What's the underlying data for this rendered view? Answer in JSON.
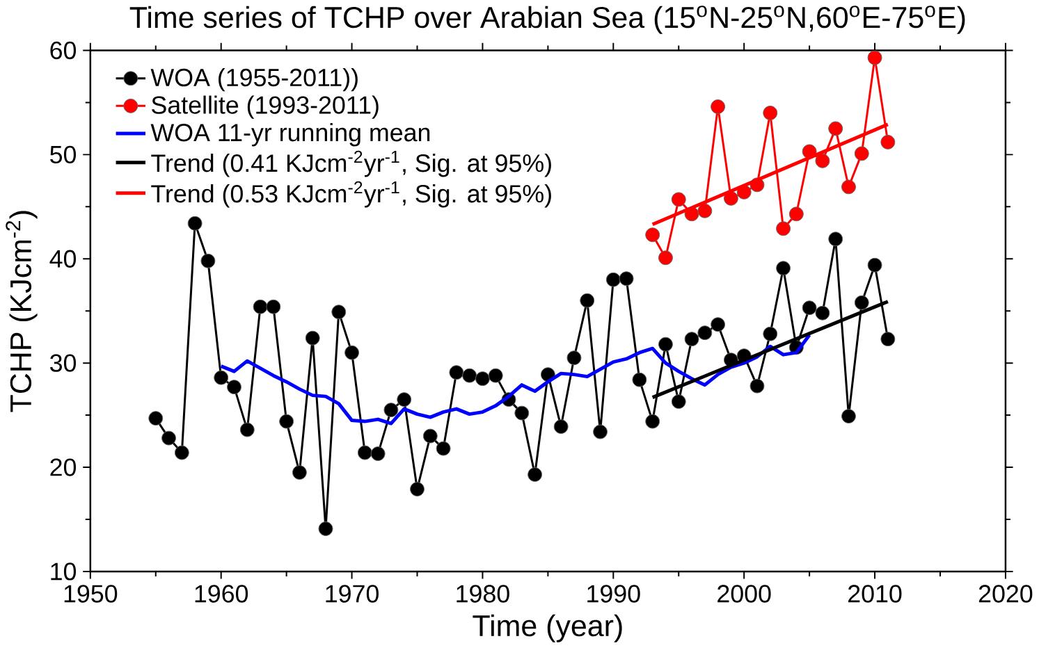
{
  "chart_data": {
    "type": "line",
    "title": "Time series of TCHP over Arabian Sea (15$^{o}$N-25$^{o}$N,60$^{o}$E-75$^{o}$E)",
    "xlabel": "Time (year)",
    "ylabel": "TCHP (KJcm$^{-2}$)",
    "xlim": [
      1950,
      2020
    ],
    "ylim": [
      10,
      60
    ],
    "xticks": [
      1950,
      1960,
      1970,
      1980,
      1990,
      2000,
      2010,
      2020
    ],
    "yticks": [
      10,
      20,
      30,
      40,
      50,
      60
    ],
    "legend": "top left",
    "line_style": "solid",
    "series": [
      {
        "name": "WOA (1955-2011))",
        "color": "#000000",
        "marker": "circle",
        "x": [
          1955,
          1956,
          1957,
          1958,
          1959,
          1960,
          1961,
          1962,
          1963,
          1964,
          1965,
          1966,
          1967,
          1968,
          1969,
          1970,
          1971,
          1972,
          1973,
          1974,
          1975,
          1976,
          1977,
          1978,
          1979,
          1980,
          1981,
          1982,
          1983,
          1984,
          1985,
          1986,
          1987,
          1988,
          1989,
          1990,
          1991,
          1992,
          1993,
          1994,
          1995,
          1996,
          1997,
          1998,
          1999,
          2000,
          2001,
          2002,
          2003,
          2004,
          2005,
          2006,
          2007,
          2008,
          2009,
          2010,
          2011
        ],
        "values": [
          24.7,
          22.8,
          21.4,
          43.4,
          39.8,
          28.6,
          27.7,
          23.6,
          35.4,
          35.4,
          24.4,
          19.5,
          32.4,
          14.1,
          34.9,
          31.0,
          21.4,
          21.3,
          25.5,
          26.5,
          17.9,
          23.0,
          21.8,
          29.1,
          28.8,
          28.5,
          28.8,
          26.5,
          25.2,
          19.3,
          28.9,
          23.9,
          30.5,
          36.0,
          23.4,
          38.0,
          38.1,
          28.4,
          24.4,
          31.8,
          26.3,
          32.3,
          32.9,
          33.7,
          30.3,
          30.7,
          27.8,
          32.8,
          39.1,
          31.5,
          35.3,
          34.8,
          41.9,
          24.9,
          35.8,
          39.4,
          32.3
        ]
      },
      {
        "name": "Satellite (1993-2011)",
        "color": "#ff0000",
        "marker": "circle",
        "x": [
          1993,
          1994,
          1995,
          1996,
          1997,
          1998,
          1999,
          2000,
          2001,
          2002,
          2003,
          2004,
          2005,
          2006,
          2007,
          2008,
          2009,
          2010,
          2011
        ],
        "values": [
          42.3,
          40.1,
          45.7,
          44.3,
          44.6,
          54.6,
          45.8,
          46.4,
          47.1,
          54.0,
          42.9,
          44.3,
          50.3,
          49.4,
          52.5,
          46.9,
          50.1,
          59.3,
          51.2
        ]
      },
      {
        "name": "WOA 11-yr running mean",
        "color": "#0000ff",
        "marker": "none",
        "x": [
          1960,
          1961,
          1962,
          1963,
          1964,
          1965,
          1966,
          1967,
          1968,
          1969,
          1970,
          1971,
          1972,
          1973,
          1974,
          1975,
          1976,
          1977,
          1978,
          1979,
          1980,
          1981,
          1982,
          1983,
          1984,
          1985,
          1986,
          1987,
          1988,
          1989,
          1990,
          1991,
          1992,
          1993,
          1994,
          1995,
          1996,
          1997,
          1998,
          1999,
          2000,
          2001,
          2002,
          2003,
          2004,
          2005
        ],
        "values": [
          29.7,
          29.2,
          30.2,
          29.5,
          28.8,
          28.2,
          27.5,
          26.9,
          26.8,
          26.1,
          24.5,
          24.4,
          24.6,
          24.2,
          25.6,
          25.1,
          24.8,
          25.3,
          25.6,
          25.1,
          25.3,
          25.9,
          26.8,
          27.9,
          27.3,
          28.2,
          29.0,
          28.9,
          28.7,
          29.4,
          30.1,
          30.4,
          31.0,
          31.4,
          30.0,
          29.2,
          28.5,
          27.9,
          28.9,
          29.6,
          30.0,
          30.6,
          31.6,
          30.8,
          31.0,
          32.7
        ]
      },
      {
        "name": "Trend (0.41 KJcm$^{-2}$yr$^{-1}$, Sig. at 95%)",
        "color": "#000000",
        "marker": "none",
        "x": [
          1993,
          2011
        ],
        "values": [
          26.7,
          35.9
        ]
      },
      {
        "name": "Trend (0.53 KJcm$^{-2}$yr$^{-1}$, Sig. at 95%)",
        "color": "#ff0000",
        "marker": "none",
        "x": [
          1993,
          2011
        ],
        "values": [
          43.3,
          52.9
        ]
      }
    ]
  }
}
